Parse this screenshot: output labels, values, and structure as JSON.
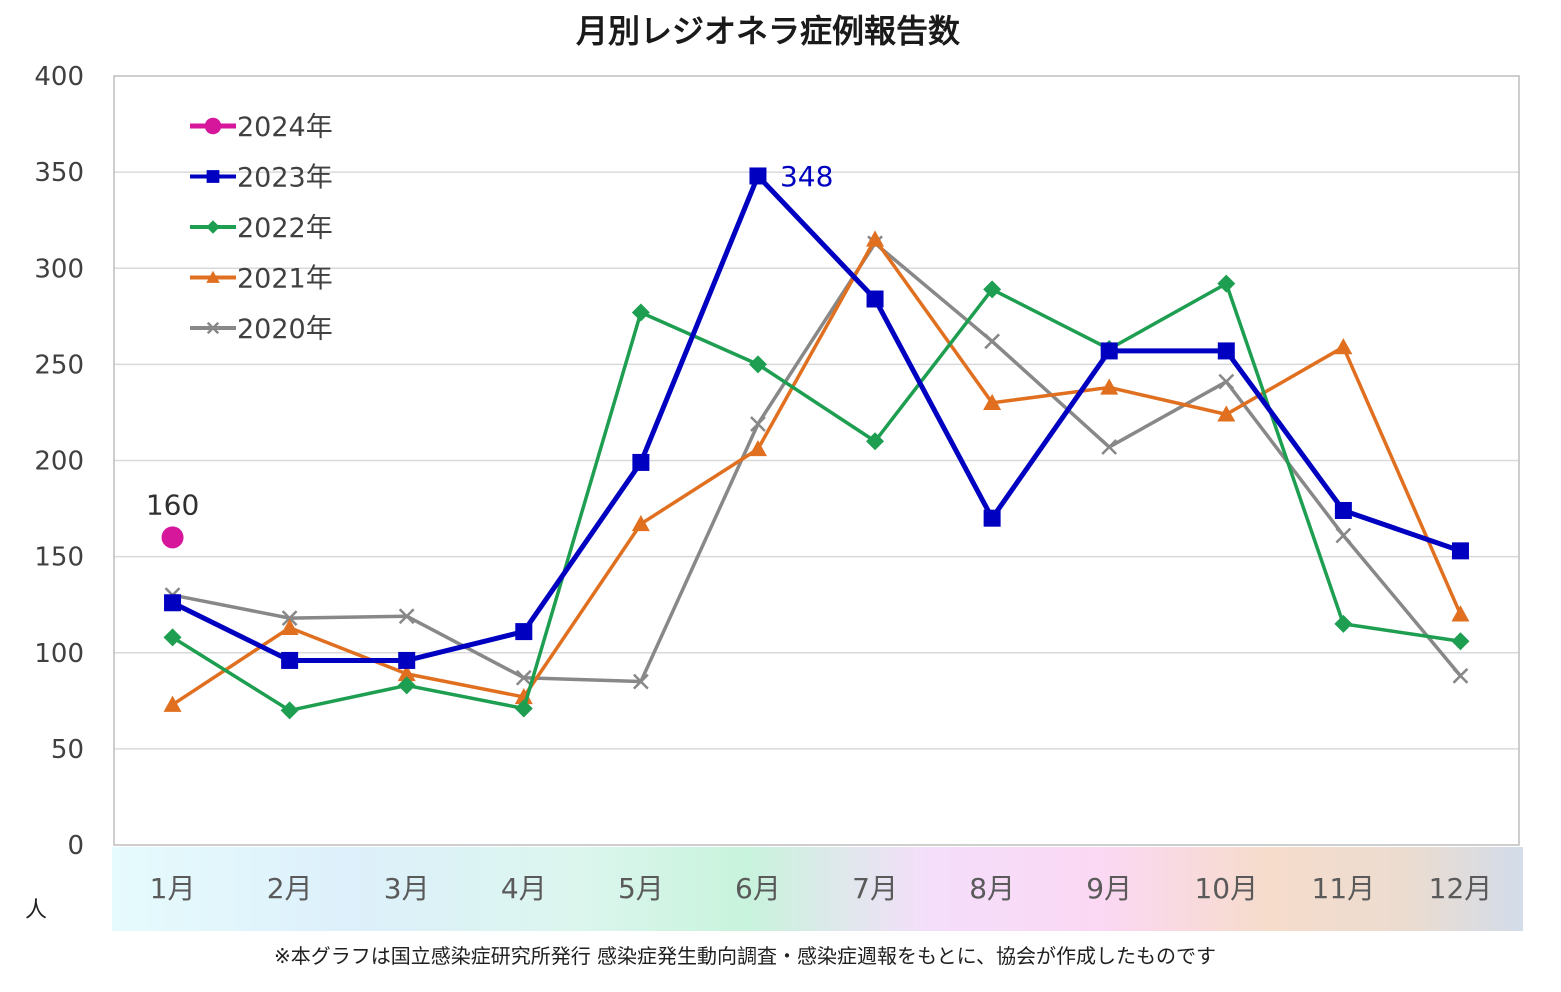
{
  "chart_data": {
    "type": "line",
    "title": "月別レジオネラ症例報告数",
    "ylabel": "人",
    "ylim": [
      0,
      400
    ],
    "yticks": [
      0,
      50,
      100,
      150,
      200,
      250,
      300,
      350,
      400
    ],
    "categories": [
      "1月",
      "2月",
      "3月",
      "4月",
      "5月",
      "6月",
      "7月",
      "8月",
      "9月",
      "10月",
      "11月",
      "12月"
    ],
    "grid": true,
    "legend_position": "top-left",
    "series": [
      {
        "name": "2024年",
        "color": "#d6169b",
        "marker": "circle",
        "values": [
          160,
          null,
          null,
          null,
          null,
          null,
          null,
          null,
          null,
          null,
          null,
          null
        ],
        "labels": {
          "0": "160"
        }
      },
      {
        "name": "2023年",
        "color": "#0000c0",
        "marker": "square",
        "values": [
          126,
          96,
          96,
          111,
          199,
          348,
          284,
          170,
          257,
          257,
          174,
          153
        ],
        "labels": {
          "5": "348"
        }
      },
      {
        "name": "2022年",
        "color": "#1e9e50",
        "marker": "diamond",
        "values": [
          108,
          70,
          83,
          71,
          277,
          250,
          210,
          289,
          258,
          292,
          115,
          106
        ]
      },
      {
        "name": "2021年",
        "color": "#e07020",
        "marker": "triangle",
        "values": [
          73,
          113,
          89,
          77,
          167,
          206,
          315,
          230,
          238,
          224,
          259,
          120
        ]
      },
      {
        "name": "2020年",
        "color": "#888888",
        "marker": "x",
        "values": [
          130,
          118,
          119,
          87,
          85,
          219,
          313,
          262,
          207,
          241,
          161,
          88
        ]
      }
    ],
    "footnote": "※本グラフは国立感染症研究所発行 感染症発生動向調査・感染症週報をもとに、協会が作成したものです"
  }
}
